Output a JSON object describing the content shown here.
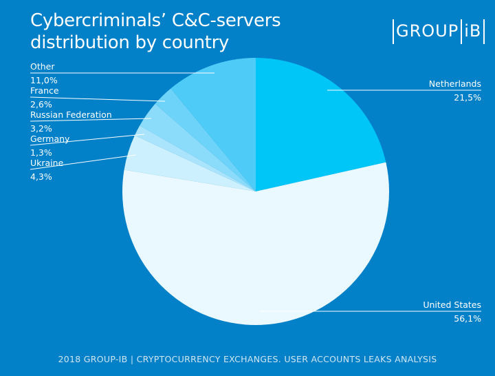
{
  "title_lines": [
    "Cybercriminals’ C&C-servers",
    "distribution by country"
  ],
  "logo": {
    "left": "GROUP",
    "right": "iB"
  },
  "footer": "2018 GROUP-IB  |  CRYPTOCURRENCY EXCHANGES. USER ACCOUNTS LEAKS ANALYSIS",
  "colors": {
    "background": "#0280c8"
  },
  "chart_data": {
    "type": "pie",
    "title": "Cybercriminals’ C&C-servers distribution by country",
    "start": "12 o'clock, clockwise",
    "slices": [
      {
        "label": "Netherlands",
        "value": 21.5,
        "value_label": "21,5%",
        "color": "#00c6f8"
      },
      {
        "label": "United States",
        "value": 56.1,
        "value_label": "56,1%",
        "color": "#eaf8ff"
      },
      {
        "label": "Ukraine",
        "value": 4.3,
        "value_label": "4,3%",
        "color": "#cdf0fe"
      },
      {
        "label": "Germany",
        "value": 1.3,
        "value_label": "1,3%",
        "color": "#aae4fc"
      },
      {
        "label": "Russian Federation",
        "value": 3.2,
        "value_label": "3,2%",
        "color": "#8bdbfa"
      },
      {
        "label": "France",
        "value": 2.6,
        "value_label": "2,6%",
        "color": "#6dd3f8"
      },
      {
        "label": "Other",
        "value": 11.0,
        "value_label": "11,0%",
        "color": "#4ecbf7"
      }
    ]
  }
}
